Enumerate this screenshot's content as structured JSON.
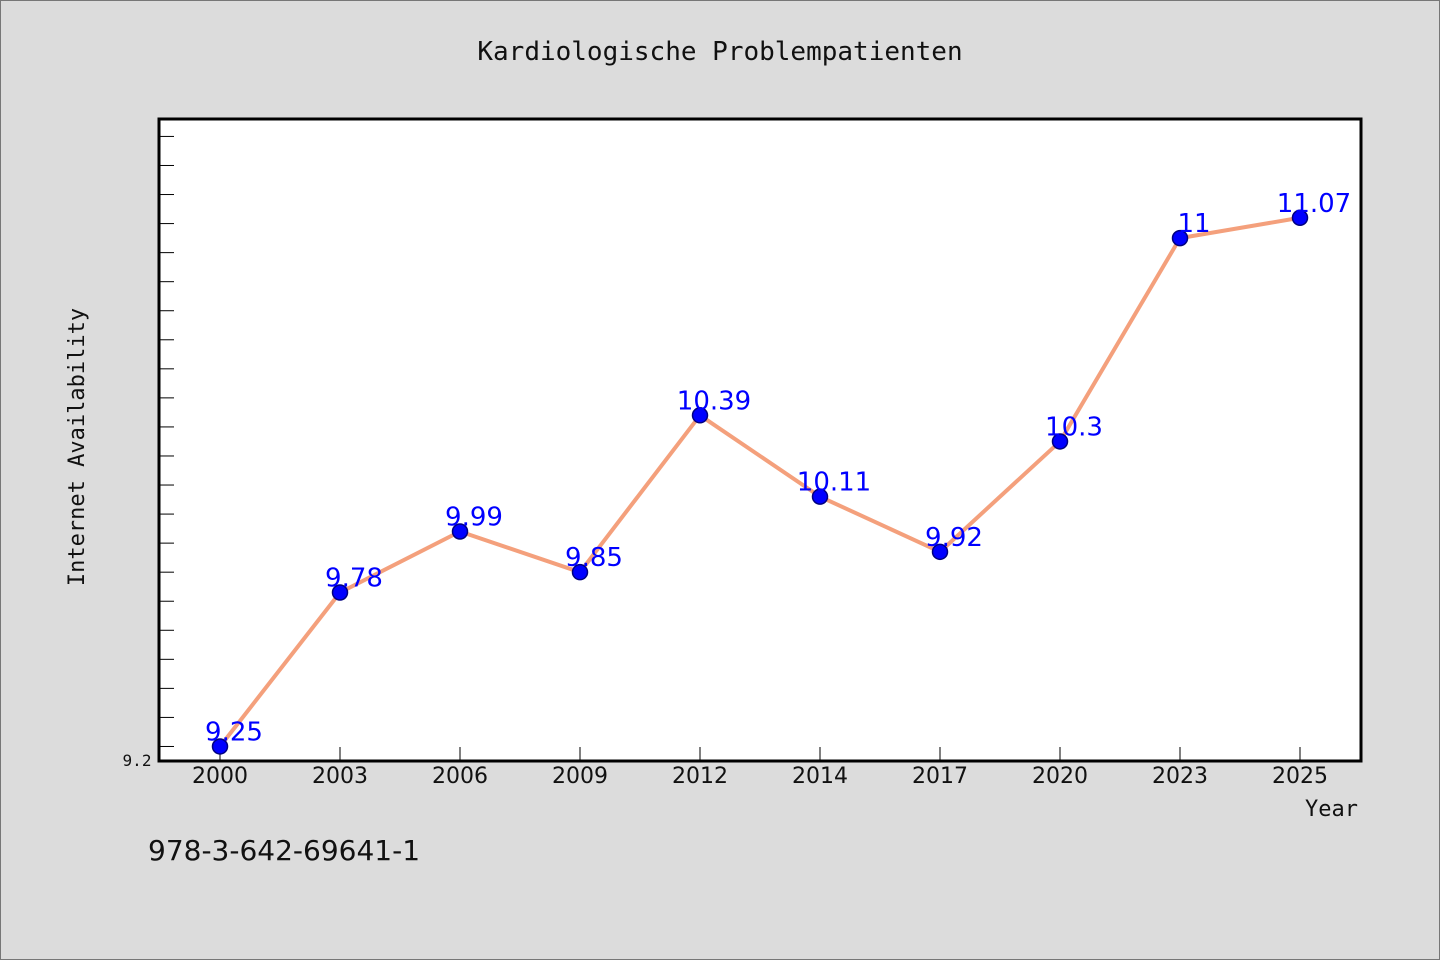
{
  "chart_data": {
    "type": "line",
    "title": "Kardiologische Problempatienten",
    "xlabel": "Year",
    "ylabel": "Internet Availability",
    "categories": [
      "2000",
      "2003",
      "2006",
      "2009",
      "2012",
      "2014",
      "2017",
      "2020",
      "2023",
      "2025"
    ],
    "series": [
      {
        "values": [
          9.25,
          9.78,
          9.99,
          9.85,
          10.39,
          10.11,
          9.92,
          10.3,
          11,
          11.07
        ],
        "data_labels": [
          "9.25",
          "9.78",
          "9.99",
          "9.85",
          "10.39",
          "10.11",
          "9.92",
          "10.3",
          "11",
          "11.07"
        ]
      }
    ],
    "y_tick_labels": [
      "9.2"
    ],
    "ylim": [
      9.2,
      11.41
    ],
    "grid": false,
    "legend": "none",
    "colors": {
      "line": "#f4a07c",
      "marker_fill": "#0000ff",
      "marker_edge": "#000080",
      "data_label": "#0000ff",
      "plot_background": "#ffffff",
      "figure_background": "#dcdcdc"
    }
  },
  "footer": {
    "isbn": "978-3-642-69641-1"
  }
}
